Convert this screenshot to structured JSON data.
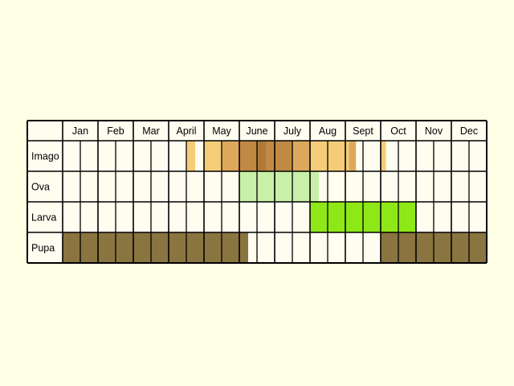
{
  "months": [
    "Jan",
    "Feb",
    "Mar",
    "April",
    "May",
    "June",
    "July",
    "Aug",
    "Sept",
    "Oct",
    "Nov",
    "Dec"
  ],
  "colors": {
    "background": "#fefee4",
    "cell": "#fffdf0",
    "grid": "#000000",
    "imago_light": "#f5cd78",
    "imago_mid": "#dea85c",
    "imago_dark": "#c08a45",
    "imago_darkest": "#b07836",
    "ova": "#c8f0a8",
    "larva": "#8ee818",
    "pupa": "#8a7440"
  },
  "rows": [
    {
      "label": "Imago",
      "spans": [
        {
          "from": 3.5,
          "to": 3.75,
          "color": "imago_light"
        },
        {
          "from": 4.0,
          "to": 4.5,
          "color": "imago_light"
        },
        {
          "from": 4.5,
          "to": 5.0,
          "color": "imago_mid"
        },
        {
          "from": 5.0,
          "to": 5.5,
          "color": "imago_dark"
        },
        {
          "from": 5.5,
          "to": 5.75,
          "color": "imago_darkest"
        },
        {
          "from": 5.75,
          "to": 6.5,
          "color": "imago_dark"
        },
        {
          "from": 6.5,
          "to": 7.0,
          "color": "imago_mid"
        },
        {
          "from": 7.0,
          "to": 8.1,
          "color": "imago_light"
        },
        {
          "from": 8.1,
          "to": 8.3,
          "color": "imago_mid"
        },
        {
          "from": 9.0,
          "to": 9.15,
          "color": "imago_light"
        }
      ]
    },
    {
      "label": "Ova",
      "spans": [
        {
          "from": 5.0,
          "to": 7.25,
          "color": "ova"
        }
      ]
    },
    {
      "label": "Larva",
      "spans": [
        {
          "from": 7.0,
          "to": 10.0,
          "color": "larva"
        }
      ]
    },
    {
      "label": "Pupa",
      "spans": [
        {
          "from": 0.0,
          "to": 5.25,
          "color": "pupa"
        },
        {
          "from": 9.0,
          "to": 12.0,
          "color": "pupa"
        }
      ]
    }
  ]
}
